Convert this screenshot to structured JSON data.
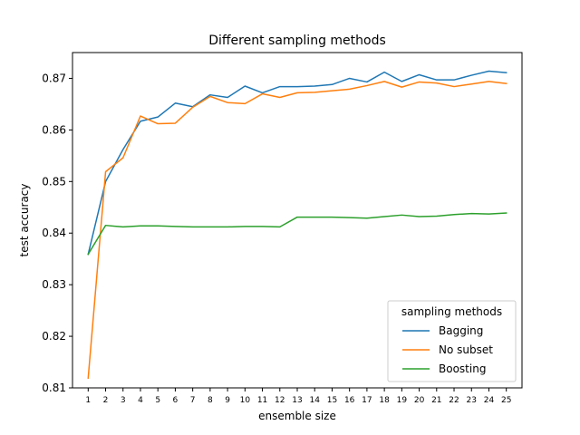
{
  "chart_data": {
    "type": "line",
    "title": "Different sampling methods",
    "xlabel": "ensemble size",
    "ylabel": "test accuracy",
    "x": [
      1,
      2,
      3,
      4,
      5,
      6,
      7,
      8,
      9,
      10,
      11,
      12,
      13,
      14,
      15,
      16,
      17,
      18,
      19,
      20,
      21,
      22,
      23,
      24,
      25
    ],
    "xlim": [
      0.1,
      25.9
    ],
    "ylim": [
      0.81,
      0.875
    ],
    "yticks": [
      "0.81",
      "0.82",
      "0.83",
      "0.84",
      "0.85",
      "0.86",
      "0.87"
    ],
    "grid": false,
    "legend": {
      "title": "sampling methods",
      "placement": "lower-right"
    },
    "series": [
      {
        "name": "Bagging",
        "color": "#1f77b4",
        "values": [
          0.8359,
          0.85,
          0.8562,
          0.8617,
          0.8625,
          0.8652,
          0.8645,
          0.8668,
          0.8663,
          0.8685,
          0.8672,
          0.8684,
          0.8684,
          0.8685,
          0.8688,
          0.87,
          0.8693,
          0.8712,
          0.8694,
          0.8707,
          0.8697,
          0.8697,
          0.8706,
          0.8714,
          0.8711
        ]
      },
      {
        "name": "No subset",
        "color": "#ff7f0e",
        "values": [
          0.8119,
          0.8519,
          0.8546,
          0.8627,
          0.8612,
          0.8613,
          0.8644,
          0.8665,
          0.8653,
          0.8651,
          0.867,
          0.8663,
          0.8672,
          0.8673,
          0.8676,
          0.8679,
          0.8686,
          0.8694,
          0.8683,
          0.8693,
          0.8691,
          0.8684,
          0.8689,
          0.8694,
          0.869
        ]
      },
      {
        "name": "Boosting",
        "color": "#2ca02c",
        "values": [
          0.8359,
          0.8415,
          0.8412,
          0.8414,
          0.8414,
          0.8413,
          0.8412,
          0.8412,
          0.8412,
          0.8413,
          0.8413,
          0.8412,
          0.8431,
          0.8431,
          0.8431,
          0.843,
          0.8429,
          0.8432,
          0.8435,
          0.8432,
          0.8433,
          0.8436,
          0.8438,
          0.8437,
          0.8439
        ]
      }
    ]
  }
}
